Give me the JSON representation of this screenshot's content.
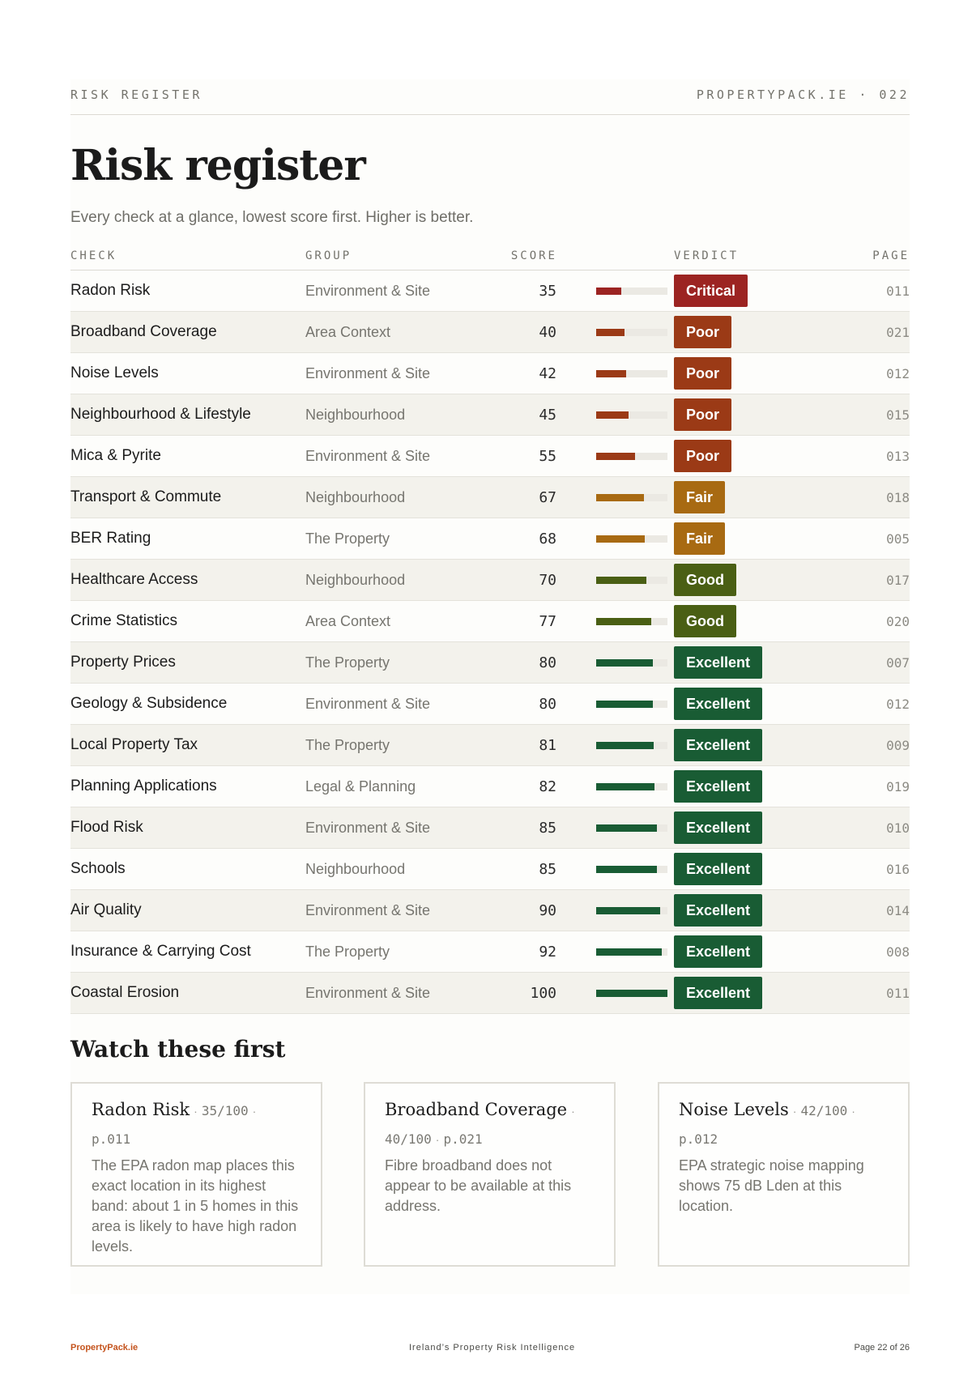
{
  "header": {
    "section": "RISK REGISTER",
    "site": "PROPERTYPACK.IE",
    "sep": "·",
    "page_no": "022"
  },
  "title": "Risk register",
  "subtitle": "Every check at a glance, lowest score first. Higher is better.",
  "table": {
    "columns": {
      "check": "CHECK",
      "group": "GROUP",
      "score": "SCORE",
      "verdict": "VERDICT",
      "page": "PAGE"
    },
    "rows": [
      {
        "check": "Radon Risk",
        "group": "Environment & Site",
        "score": "35",
        "verdict": "Critical",
        "page": "011"
      },
      {
        "check": "Broadband Coverage",
        "group": "Area Context",
        "score": "40",
        "verdict": "Poor",
        "page": "021"
      },
      {
        "check": "Noise Levels",
        "group": "Environment & Site",
        "score": "42",
        "verdict": "Poor",
        "page": "012"
      },
      {
        "check": "Neighbourhood & Lifestyle",
        "group": "Neighbourhood",
        "score": "45",
        "verdict": "Poor",
        "page": "015"
      },
      {
        "check": "Mica & Pyrite",
        "group": "Environment & Site",
        "score": "55",
        "verdict": "Poor",
        "page": "013"
      },
      {
        "check": "Transport & Commute",
        "group": "Neighbourhood",
        "score": "67",
        "verdict": "Fair",
        "page": "018"
      },
      {
        "check": "BER Rating",
        "group": "The Property",
        "score": "68",
        "verdict": "Fair",
        "page": "005"
      },
      {
        "check": "Healthcare Access",
        "group": "Neighbourhood",
        "score": "70",
        "verdict": "Good",
        "page": "017"
      },
      {
        "check": "Crime Statistics",
        "group": "Area Context",
        "score": "77",
        "verdict": "Good",
        "page": "020"
      },
      {
        "check": "Property Prices",
        "group": "The Property",
        "score": "80",
        "verdict": "Excellent",
        "page": "007"
      },
      {
        "check": "Geology & Subsidence",
        "group": "Environment & Site",
        "score": "80",
        "verdict": "Excellent",
        "page": "012"
      },
      {
        "check": "Local Property Tax",
        "group": "The Property",
        "score": "81",
        "verdict": "Excellent",
        "page": "009"
      },
      {
        "check": "Planning Applications",
        "group": "Legal & Planning",
        "score": "82",
        "verdict": "Excellent",
        "page": "019"
      },
      {
        "check": "Flood Risk",
        "group": "Environment & Site",
        "score": "85",
        "verdict": "Excellent",
        "page": "010"
      },
      {
        "check": "Schools",
        "group": "Neighbourhood",
        "score": "85",
        "verdict": "Excellent",
        "page": "016"
      },
      {
        "check": "Air Quality",
        "group": "Environment & Site",
        "score": "90",
        "verdict": "Excellent",
        "page": "014"
      },
      {
        "check": "Insurance & Carrying Cost",
        "group": "The Property",
        "score": "92",
        "verdict": "Excellent",
        "page": "008"
      },
      {
        "check": "Coastal Erosion",
        "group": "Environment & Site",
        "score": "100",
        "verdict": "Excellent",
        "page": "011"
      }
    ]
  },
  "verdict_colors": {
    "Critical": "#9c2422",
    "Poor": "#9b3a16",
    "Fair": "#a86a12",
    "Good": "#4a5f14",
    "Excellent": "#195c34"
  },
  "watch": {
    "title": "Watch these first",
    "cards": [
      {
        "title": "Radon Risk",
        "score": "35/100",
        "page": "p.011",
        "body": "The EPA radon map places this exact location in its highest band: about 1 in 5 homes in this area is likely to have high radon levels."
      },
      {
        "title": "Broadband Coverage",
        "score": "40/100",
        "page": "p.021",
        "body": "Fibre broadband does not appear to be available at this address."
      },
      {
        "title": "Noise Levels",
        "score": "42/100",
        "page": "p.012",
        "body": "EPA strategic noise mapping shows 75 dB Lden at this location."
      }
    ]
  },
  "footer": {
    "brand": "PropertyPack.ie",
    "tagline": "Ireland’s Property Risk Intelligence",
    "page_of": "Page 22 of 26"
  }
}
